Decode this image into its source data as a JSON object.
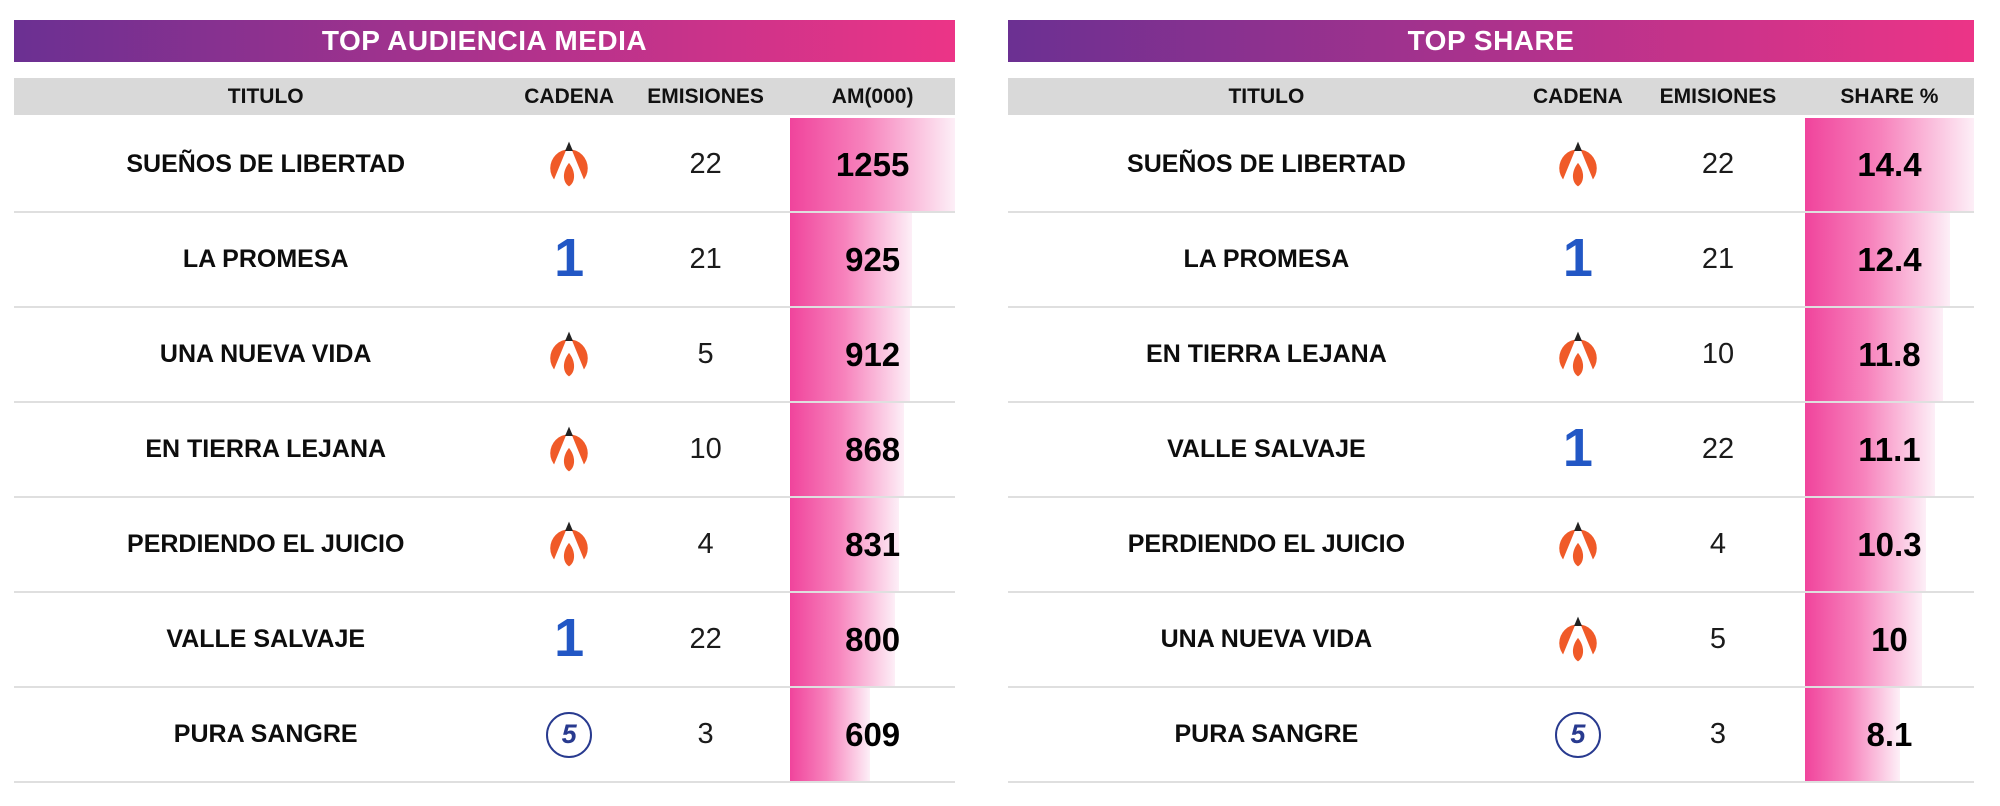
{
  "colors": {
    "header_gradient_start": "#6B3092",
    "header_gradient_end": "#EC3487",
    "header_row_bg": "#D9D9D9",
    "bar_color": "#F0449C",
    "antena3_orange": "#F05A28",
    "la1_blue": "#2257C5",
    "telecinco_navy": "#283A8F"
  },
  "channel_icons": {
    "antena3": "antena3-logo-icon",
    "la1": "la1-logo-icon",
    "telecinco": "telecinco-logo-icon"
  },
  "chart_data": [
    {
      "type": "bar",
      "id": "top-audiencia-media",
      "title": "TOP AUDIENCIA MEDIA",
      "columns": [
        "TITULO",
        "CADENA",
        "EMISIONES",
        "AM(000)"
      ],
      "ylabel": "AM(000)",
      "bar_max": 1255,
      "grid": false,
      "rows": [
        {
          "titulo": "SUEÑOS DE LIBERTAD",
          "cadena": "antena3",
          "emisiones": 22,
          "valor": 1255
        },
        {
          "titulo": "LA PROMESA",
          "cadena": "la1",
          "emisiones": 21,
          "valor": 925
        },
        {
          "titulo": "UNA NUEVA VIDA",
          "cadena": "antena3",
          "emisiones": 5,
          "valor": 912
        },
        {
          "titulo": "EN TIERRA LEJANA",
          "cadena": "antena3",
          "emisiones": 10,
          "valor": 868
        },
        {
          "titulo": "PERDIENDO EL JUICIO",
          "cadena": "antena3",
          "emisiones": 4,
          "valor": 831
        },
        {
          "titulo": "VALLE SALVAJE",
          "cadena": "la1",
          "emisiones": 22,
          "valor": 800
        },
        {
          "titulo": "PURA SANGRE",
          "cadena": "telecinco",
          "emisiones": 3,
          "valor": 609
        }
      ]
    },
    {
      "type": "bar",
      "id": "top-share",
      "title": "TOP SHARE",
      "columns": [
        "TITULO",
        "CADENA",
        "EMISIONES",
        "SHARE %"
      ],
      "ylabel": "SHARE %",
      "bar_max": 14.4,
      "grid": false,
      "rows": [
        {
          "titulo": "SUEÑOS DE LIBERTAD",
          "cadena": "antena3",
          "emisiones": 22,
          "valor": 14.4
        },
        {
          "titulo": "LA PROMESA",
          "cadena": "la1",
          "emisiones": 21,
          "valor": 12.4
        },
        {
          "titulo": "EN TIERRA LEJANA",
          "cadena": "antena3",
          "emisiones": 10,
          "valor": 11.8
        },
        {
          "titulo": "VALLE SALVAJE",
          "cadena": "la1",
          "emisiones": 22,
          "valor": 11.1
        },
        {
          "titulo": "PERDIENDO EL JUICIO",
          "cadena": "antena3",
          "emisiones": 4,
          "valor": 10.3
        },
        {
          "titulo": "UNA NUEVA VIDA",
          "cadena": "antena3",
          "emisiones": 5,
          "valor": 10
        },
        {
          "titulo": "PURA SANGRE",
          "cadena": "telecinco",
          "emisiones": 3,
          "valor": 8.1
        }
      ]
    }
  ]
}
